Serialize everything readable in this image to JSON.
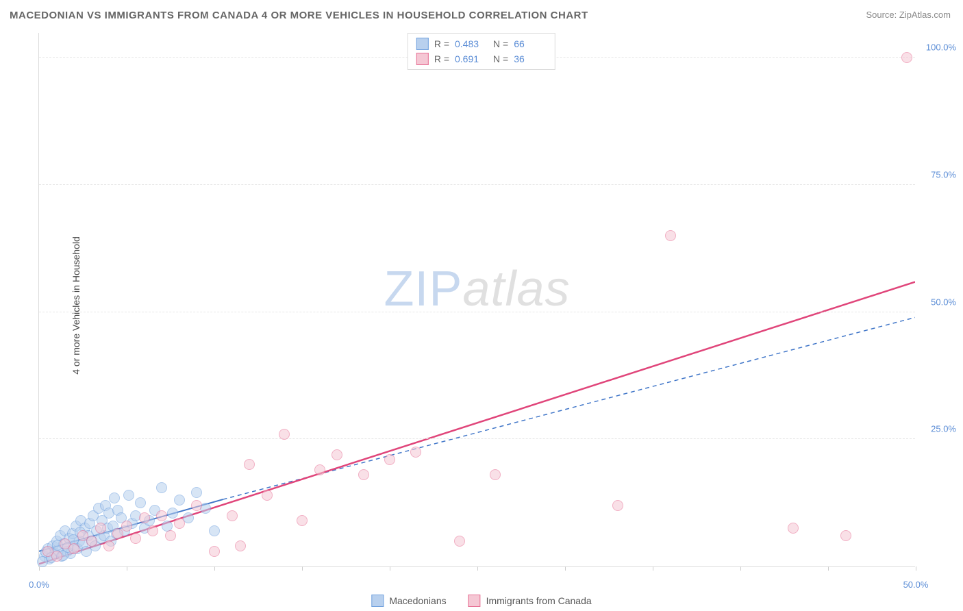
{
  "title": "MACEDONIAN VS IMMIGRANTS FROM CANADA 4 OR MORE VEHICLES IN HOUSEHOLD CORRELATION CHART",
  "source_prefix": "Source: ",
  "source_name": "ZipAtlas.com",
  "ylabel": "4 or more Vehicles in Household",
  "watermark_a": "ZIP",
  "watermark_b": "atlas",
  "chart": {
    "type": "scatter",
    "xlim": [
      0,
      50
    ],
    "ylim": [
      0,
      105
    ],
    "xtick_positions": [
      0,
      5,
      10,
      15,
      20,
      25,
      30,
      35,
      40,
      45,
      50
    ],
    "xtick_labels": {
      "0": "0.0%",
      "50": "50.0%"
    },
    "ytick_positions": [
      25,
      50,
      75,
      100
    ],
    "ytick_labels": [
      "25.0%",
      "50.0%",
      "75.0%",
      "100.0%"
    ],
    "background_color": "#ffffff",
    "grid_color": "#e6e6e6",
    "axis_color": "#dcdcdc",
    "tick_label_color": "#5b8dd6",
    "marker_radius": 8,
    "marker_border_width": 1,
    "series": [
      {
        "name": "Macedonians",
        "fill": "#b8d0ee",
        "stroke": "#6fa0de",
        "fill_opacity": 0.55,
        "r": 0.483,
        "n": 66,
        "trend": {
          "style": "solid",
          "color": "#3f75c8",
          "width": 2,
          "x1": 0,
          "y1": 3.0,
          "x2": 10.5,
          "y2": 13.2,
          "dash_ext_x2": 50,
          "dash_ext_y2": 49
        },
        "points": [
          [
            0.3,
            2.0
          ],
          [
            0.5,
            3.5
          ],
          [
            0.6,
            1.5
          ],
          [
            0.8,
            4.0
          ],
          [
            0.9,
            2.5
          ],
          [
            1.0,
            5.0
          ],
          [
            1.1,
            3.0
          ],
          [
            1.2,
            6.0
          ],
          [
            1.3,
            2.0
          ],
          [
            1.4,
            4.5
          ],
          [
            1.5,
            7.0
          ],
          [
            1.6,
            3.0
          ],
          [
            1.7,
            5.5
          ],
          [
            1.8,
            2.5
          ],
          [
            1.9,
            6.5
          ],
          [
            2.0,
            4.0
          ],
          [
            2.1,
            8.0
          ],
          [
            2.2,
            3.5
          ],
          [
            2.3,
            5.0
          ],
          [
            2.4,
            9.0
          ],
          [
            2.5,
            4.5
          ],
          [
            2.6,
            7.5
          ],
          [
            2.7,
            3.0
          ],
          [
            2.8,
            6.0
          ],
          [
            2.9,
            8.5
          ],
          [
            3.0,
            5.0
          ],
          [
            3.1,
            10.0
          ],
          [
            3.2,
            4.0
          ],
          [
            3.3,
            7.0
          ],
          [
            3.4,
            11.5
          ],
          [
            3.5,
            5.5
          ],
          [
            3.6,
            9.0
          ],
          [
            3.7,
            6.0
          ],
          [
            3.8,
            12.0
          ],
          [
            3.9,
            7.5
          ],
          [
            4.0,
            10.5
          ],
          [
            4.1,
            5.0
          ],
          [
            4.2,
            8.0
          ],
          [
            4.3,
            13.5
          ],
          [
            4.4,
            6.5
          ],
          [
            4.5,
            11.0
          ],
          [
            4.7,
            9.5
          ],
          [
            4.9,
            7.0
          ],
          [
            5.1,
            14.0
          ],
          [
            5.3,
            8.5
          ],
          [
            5.5,
            10.0
          ],
          [
            5.8,
            12.5
          ],
          [
            6.0,
            7.5
          ],
          [
            6.3,
            9.0
          ],
          [
            6.6,
            11.0
          ],
          [
            7.0,
            15.5
          ],
          [
            7.3,
            8.0
          ],
          [
            7.6,
            10.5
          ],
          [
            8.0,
            13.0
          ],
          [
            8.5,
            9.5
          ],
          [
            9.0,
            14.5
          ],
          [
            9.5,
            11.5
          ],
          [
            10.0,
            7.0
          ],
          [
            0.2,
            1.0
          ],
          [
            0.4,
            2.8
          ],
          [
            0.7,
            1.8
          ],
          [
            1.05,
            4.2
          ],
          [
            1.35,
            2.2
          ],
          [
            1.65,
            3.8
          ],
          [
            1.95,
            5.2
          ],
          [
            2.35,
            6.8
          ]
        ]
      },
      {
        "name": "Immigrants from Canada",
        "fill": "#f5c7d4",
        "stroke": "#e76f94",
        "fill_opacity": 0.55,
        "r": 0.691,
        "n": 36,
        "trend": {
          "style": "solid",
          "color": "#e0457a",
          "width": 2.5,
          "x1": 0,
          "y1": 0.5,
          "x2": 50,
          "y2": 56
        },
        "points": [
          [
            0.5,
            3.0
          ],
          [
            1.0,
            2.0
          ],
          [
            1.5,
            4.5
          ],
          [
            2.0,
            3.5
          ],
          [
            2.5,
            6.0
          ],
          [
            3.0,
            5.0
          ],
          [
            3.5,
            7.5
          ],
          [
            4.0,
            4.0
          ],
          [
            4.5,
            6.5
          ],
          [
            5.0,
            8.0
          ],
          [
            5.5,
            5.5
          ],
          [
            6.0,
            9.5
          ],
          [
            6.5,
            7.0
          ],
          [
            7.0,
            10.0
          ],
          [
            7.5,
            6.0
          ],
          [
            8.0,
            8.5
          ],
          [
            9.0,
            12.0
          ],
          [
            10.0,
            3.0
          ],
          [
            11.0,
            10.0
          ],
          [
            12.0,
            20.0
          ],
          [
            13.0,
            14.0
          ],
          [
            14.0,
            26.0
          ],
          [
            15.0,
            9.0
          ],
          [
            16.0,
            19.0
          ],
          [
            17.0,
            22.0
          ],
          [
            18.5,
            18.0
          ],
          [
            20.0,
            21.0
          ],
          [
            21.5,
            22.5
          ],
          [
            24.0,
            5.0
          ],
          [
            26.0,
            18.0
          ],
          [
            33.0,
            12.0
          ],
          [
            36.0,
            65.0
          ],
          [
            43.0,
            7.5
          ],
          [
            46.0,
            6.0
          ],
          [
            49.5,
            100.0
          ],
          [
            11.5,
            4.0
          ]
        ]
      }
    ]
  },
  "stats_box": {
    "r_label": "R =",
    "n_label": "N ="
  }
}
